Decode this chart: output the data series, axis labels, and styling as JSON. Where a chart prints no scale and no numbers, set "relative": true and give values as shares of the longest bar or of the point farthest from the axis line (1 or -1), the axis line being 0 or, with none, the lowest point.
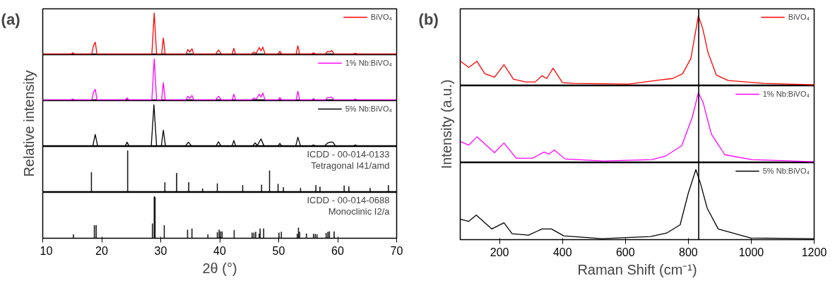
{
  "chart_data": [
    {
      "type": "line",
      "relative": true,
      "xlim": [
        10,
        70
      ],
      "xticks": [
        10,
        20,
        30,
        40,
        50,
        60,
        70
      ],
      "tick_labels": false,
      "legend": "top right",
      "annotations": [
        "(a)"
      ],
      "x": [
        10,
        14.8,
        15.1,
        15.4,
        18.3,
        18.6,
        18.9,
        19.2,
        28.5,
        28.9,
        29.3,
        30.15,
        30.45,
        30.75,
        34.3,
        34.6,
        34.95,
        35.3,
        35.6,
        39.3,
        39.8,
        40.3,
        42.1,
        42.4,
        42.7,
        45.4,
        45.8,
        46.2,
        46.7,
        47.0,
        47.3,
        47.7,
        49.9,
        50.2,
        50.5,
        52.95,
        53.25,
        53.55,
        55.6,
        55.9,
        56.2,
        57.9,
        58.3,
        58.7,
        59.0,
        59.4,
        62.7,
        63.0,
        63.3,
        70
      ],
      "series": [
        {
          "name": "BiVO₄",
          "color": "#ff0000",
          "values": [
            0,
            0,
            0.03,
            0,
            0,
            0.2,
            0.29,
            0,
            0,
            1,
            0,
            0,
            0.39,
            0,
            0,
            0.11,
            0.05,
            0.13,
            0,
            0,
            0.1,
            0,
            0,
            0.14,
            0,
            0,
            0.05,
            0.02,
            0.16,
            0.08,
            0.17,
            0,
            0,
            0.07,
            0,
            0,
            0.2,
            0,
            0,
            0.03,
            0,
            0,
            0.07,
            0.05,
            0.09,
            0,
            0,
            0.02,
            0,
            0
          ]
        }
      ]
    },
    {
      "type": "line",
      "relative": true,
      "xlim": [
        10,
        70
      ],
      "xticks": [
        10,
        20,
        30,
        40,
        50,
        60,
        70
      ],
      "tick_labels": false,
      "legend": "top right",
      "x": [
        10,
        14.8,
        15.1,
        15.4,
        18.3,
        18.6,
        18.9,
        19.2,
        24.0,
        24.3,
        24.6,
        28.5,
        28.9,
        29.3,
        30.15,
        30.45,
        30.75,
        34.3,
        34.6,
        34.95,
        35.3,
        35.6,
        39.3,
        39.8,
        40.3,
        42.1,
        42.4,
        42.7,
        45.4,
        45.8,
        46.2,
        46.7,
        47.0,
        47.3,
        47.7,
        49.9,
        50.2,
        50.5,
        52.95,
        53.25,
        53.55,
        55.6,
        55.9,
        56.2,
        57.9,
        58.3,
        58.7,
        59.0,
        59.4,
        62.7,
        63.0,
        63.3,
        70
      ],
      "series": [
        {
          "name": "1% Nb:BiVO₄",
          "color": "#ff00ff",
          "values": [
            0,
            0,
            0.02,
            0,
            0,
            0.18,
            0.26,
            0,
            0,
            0.05,
            0,
            0,
            1,
            0,
            0,
            0.42,
            0,
            0,
            0.09,
            0.04,
            0.11,
            0,
            0,
            0.09,
            0,
            0,
            0.14,
            0,
            0,
            0.05,
            0.02,
            0.14,
            0.07,
            0.17,
            0,
            0,
            0.06,
            0,
            0,
            0.21,
            0,
            0,
            0.03,
            0,
            0,
            0.06,
            0.06,
            0.07,
            0,
            0,
            0.02,
            0,
            0
          ]
        }
      ]
    },
    {
      "type": "line",
      "relative": true,
      "xlim": [
        10,
        70
      ],
      "xticks": [
        10,
        20,
        30,
        40,
        50,
        60,
        70
      ],
      "tick_labels": false,
      "legend": "top right",
      "ylabel": "Relative intensity",
      "x": [
        10,
        18.5,
        18.9,
        19.3,
        24.0,
        24.3,
        24.6,
        28.4,
        28.85,
        29.3,
        30.1,
        30.45,
        30.8,
        34.2,
        34.7,
        35.2,
        39.4,
        39.8,
        40.2,
        42.1,
        42.4,
        42.7,
        45.6,
        46.0,
        46.4,
        47.0,
        47.5,
        49.9,
        50.2,
        50.5,
        52.9,
        53.25,
        53.7,
        55.6,
        55.9,
        56.2,
        57.8,
        58.3,
        58.7,
        59.2,
        59.6,
        62.7,
        63.0,
        63.3,
        70
      ],
      "series": [
        {
          "name": "5% Nb:BiVO₄",
          "color": "#000000",
          "values": [
            0,
            0,
            0.28,
            0,
            0,
            0.09,
            0,
            0,
            1,
            0,
            0,
            0.38,
            0,
            0,
            0.09,
            0,
            0,
            0.1,
            0,
            0,
            0.13,
            0,
            0,
            0.07,
            0.01,
            0.17,
            0,
            0,
            0.06,
            0,
            0,
            0.21,
            0,
            0,
            0.02,
            0,
            0,
            0.07,
            0.09,
            0.09,
            0,
            0,
            0.02,
            0,
            0
          ]
        }
      ]
    },
    {
      "type": "bar",
      "relative": true,
      "xlim": [
        10,
        70
      ],
      "xticks": [
        10,
        20,
        30,
        40,
        50,
        60,
        70
      ],
      "tick_labels": false,
      "annotations": [
        "ICDD - 00-014-0133",
        "Tetragonal I41/amd"
      ],
      "x": [
        18.25,
        24.4,
        30.7,
        32.7,
        34.75,
        37.1,
        39.6,
        43.9,
        47.1,
        48.45,
        49.9,
        50.8,
        53.7,
        56.3,
        57.0,
        61.1,
        61.9,
        65.5,
        68.6
      ],
      "series": [
        {
          "color": "#000000",
          "values": [
            0.48,
            1,
            0.24,
            0.46,
            0.24,
            0.09,
            0.21,
            0.17,
            0.18,
            0.52,
            0.2,
            0.12,
            0.1,
            0.17,
            0.13,
            0.16,
            0.14,
            0.1,
            0.17
          ]
        }
      ]
    },
    {
      "type": "bar",
      "relative": true,
      "xlim": [
        10,
        70
      ],
      "xticks": [
        10,
        20,
        30,
        40,
        50,
        60,
        70
      ],
      "tick_labels": "x",
      "xlabel": "2θ (°)",
      "annotations": [
        "ICDD - 00-014-0688",
        "Monoclinic I2/a"
      ],
      "x": [
        15.2,
        18.75,
        19.05,
        28.6,
        28.9,
        29.05,
        30.6,
        34.55,
        35.3,
        38.0,
        39.6,
        39.9,
        40.15,
        40.4,
        42.45,
        45.5,
        45.8,
        46.1,
        46.7,
        46.85,
        47.45,
        50.05,
        50.45,
        53.15,
        53.35,
        53.55,
        54.7,
        55.9,
        56.2,
        56.5,
        58.05,
        58.35,
        58.6,
        59.4
      ],
      "series": [
        {
          "color": "#000000",
          "values": [
            0.09,
            0.31,
            0.31,
            0.35,
            1,
            0.98,
            0.31,
            0.2,
            0.23,
            0.09,
            0.14,
            0.2,
            0.16,
            0.16,
            0.19,
            0.13,
            0.13,
            0.15,
            0.11,
            0.23,
            0.23,
            0.13,
            0.15,
            0.1,
            0.25,
            0.15,
            0.11,
            0.1,
            0.1,
            0.09,
            0.12,
            0.15,
            0.16,
            0.16
          ]
        }
      ]
    },
    {
      "type": "line",
      "relative": true,
      "xlim": [
        75,
        1200
      ],
      "xticks": [
        200,
        400,
        600,
        800,
        1000,
        1200
      ],
      "tick_labels": false,
      "legend": "top right",
      "annotations": [
        "(b)"
      ],
      "ref_lines": [
        {
          "axis": "x",
          "value": 833,
          "color": "#000000"
        }
      ],
      "x": [
        76,
        102,
        128,
        153,
        184,
        214,
        244,
        283,
        313,
        335,
        350,
        370,
        400,
        438,
        610,
        712,
        750,
        782,
        808,
        832,
        846,
        863,
        889,
        927,
        1040,
        1200
      ],
      "series": [
        {
          "name": "BiVO₄",
          "color": "#ff0000",
          "values": [
            0.34,
            0.25,
            0.34,
            0.16,
            0.11,
            0.29,
            0.08,
            0.04,
            0.04,
            0.13,
            0.09,
            0.24,
            0.03,
            0.02,
            0.01,
            0.07,
            0.09,
            0.16,
            0.38,
            1,
            0.81,
            0.46,
            0.14,
            0.06,
            0.02,
            0
          ]
        }
      ]
    },
    {
      "type": "line",
      "relative": true,
      "xlim": [
        75,
        1200
      ],
      "xticks": [
        200,
        400,
        600,
        800,
        1000,
        1200
      ],
      "tick_labels": false,
      "legend": "top right",
      "ylabel": "Intensity (a.u.)",
      "ref_lines": [
        {
          "axis": "x",
          "value": 833,
          "color": "#000000"
        }
      ],
      "x": [
        76,
        102,
        128,
        184,
        214,
        253,
        305,
        341,
        357,
        374,
        408,
        529,
        684,
        727,
        779,
        813,
        832,
        847,
        873,
        916,
        1002,
        1200
      ],
      "series": [
        {
          "name": "1% Nb:BiVO₄",
          "color": "#ff00ff",
          "values": [
            0.29,
            0.24,
            0.36,
            0.13,
            0.27,
            0.05,
            0.05,
            0.14,
            0.11,
            0.17,
            0.04,
            0.01,
            0.03,
            0.08,
            0.23,
            0.65,
            1,
            0.86,
            0.4,
            0.1,
            0.03,
            0
          ]
        }
      ]
    },
    {
      "type": "line",
      "relative": true,
      "xlim": [
        75,
        1200
      ],
      "xticks": [
        200,
        400,
        600,
        800,
        1000,
        1200
      ],
      "tick_labels": "x",
      "legend": "top right",
      "xlabel": "Raman Shift (cm⁻¹)",
      "ref_lines": [
        {
          "axis": "x",
          "value": 833,
          "color": "#000000"
        }
      ],
      "x": [
        76,
        102,
        126,
        175,
        214,
        240,
        292,
        335,
        365,
        404,
        525,
        680,
        731,
        774,
        800,
        824,
        838,
        860,
        895,
        998,
        1200
      ],
      "series": [
        {
          "name": "5% Nb:BiVO₄",
          "color": "#000000",
          "values": [
            0.28,
            0.25,
            0.34,
            0.14,
            0.23,
            0.07,
            0.05,
            0.14,
            0.14,
            0.04,
            0,
            0.03,
            0.08,
            0.2,
            0.66,
            1,
            0.81,
            0.44,
            0.14,
            0.01,
            0
          ]
        }
      ]
    }
  ]
}
